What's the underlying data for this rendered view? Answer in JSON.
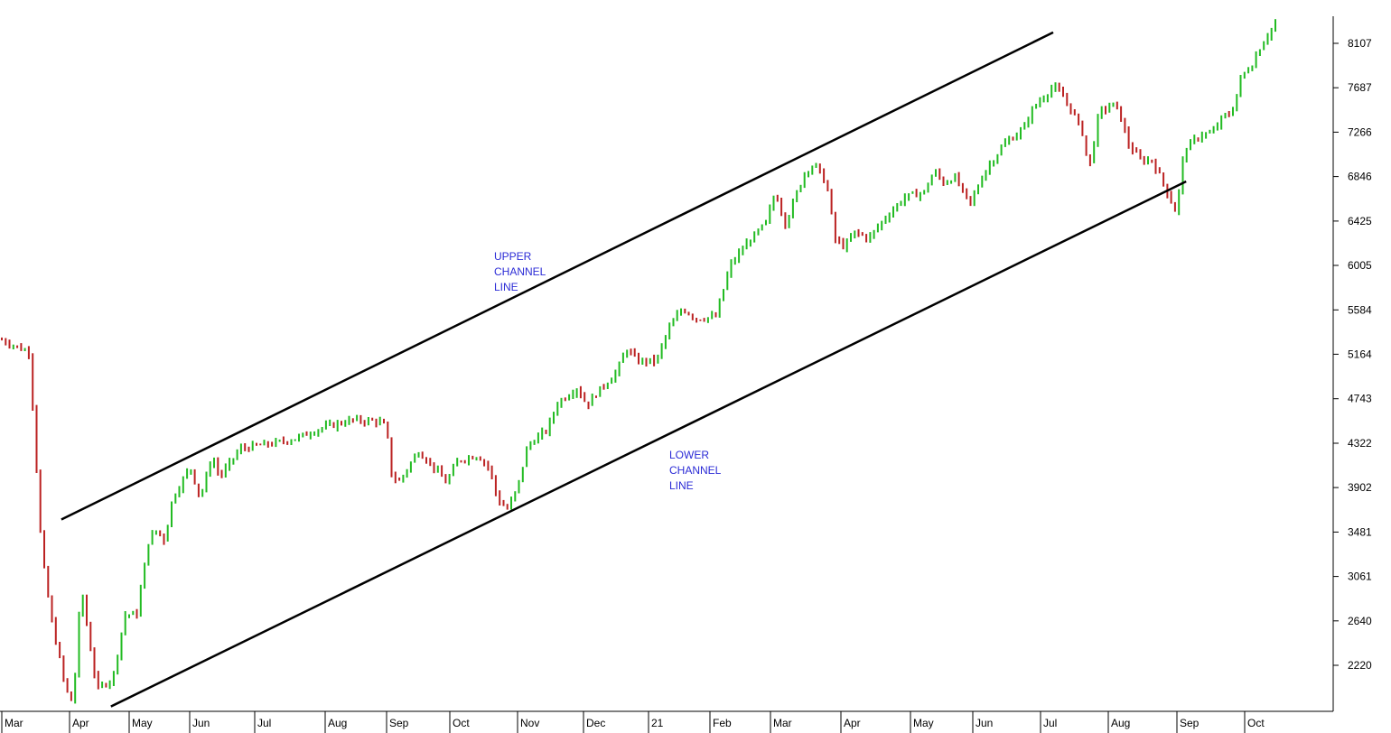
{
  "chart_data": {
    "type": "ohlc",
    "title": "",
    "xlabel": "",
    "ylabel": "",
    "ylim": [
      1780,
      8360
    ],
    "y_ticks": [
      2220,
      2640,
      3061,
      3481,
      3902,
      4322,
      4743,
      5164,
      5584,
      6005,
      6425,
      6846,
      7266,
      7687,
      8107
    ],
    "x_ticks": [
      "Mar",
      "Apr",
      "May",
      "Jun",
      "Jul",
      "Aug",
      "Sep",
      "Oct",
      "Nov",
      "Dec",
      "21",
      "Feb",
      "Mar",
      "Apr",
      "May",
      "Jun",
      "Jul",
      "Aug",
      "Sep",
      "Oct"
    ],
    "up_color": "#22bb22",
    "down_color": "#bb2222",
    "grid": false,
    "price_path": [
      [
        0,
        5300
      ],
      [
        1.4,
        5180
      ],
      [
        2.0,
        3300
      ],
      [
        2.5,
        2650
      ],
      [
        3.0,
        2200
      ],
      [
        3.2,
        2000
      ],
      [
        3.6,
        1850
      ],
      [
        4.0,
        3000
      ],
      [
        4.2,
        2700
      ],
      [
        4.8,
        1990
      ],
      [
        5.6,
        2100
      ],
      [
        6.2,
        2700
      ],
      [
        6.8,
        2700
      ],
      [
        7.4,
        3400
      ],
      [
        7.8,
        3500
      ],
      [
        8.2,
        3400
      ],
      [
        8.6,
        3800
      ],
      [
        9.5,
        4100
      ],
      [
        10.0,
        3800
      ],
      [
        10.6,
        4200
      ],
      [
        11.0,
        4000
      ],
      [
        12.0,
        4270
      ],
      [
        14.0,
        4330
      ],
      [
        15.0,
        4380
      ],
      [
        16.0,
        4460
      ],
      [
        17.6,
        4540
      ],
      [
        19.0,
        4530
      ],
      [
        19.4,
        4470
      ],
      [
        19.6,
        4040
      ],
      [
        20.0,
        3950
      ],
      [
        21.0,
        4250
      ],
      [
        21.8,
        4090
      ],
      [
        22.4,
        3950
      ],
      [
        23.0,
        4160
      ],
      [
        24.0,
        4210
      ],
      [
        24.6,
        4080
      ],
      [
        25.0,
        3780
      ],
      [
        25.5,
        3700
      ],
      [
        26.0,
        3900
      ],
      [
        26.5,
        4300
      ],
      [
        27.5,
        4450
      ],
      [
        28.0,
        4700
      ],
      [
        29.0,
        4850
      ],
      [
        29.5,
        4680
      ],
      [
        30.0,
        4800
      ],
      [
        31.0,
        5000
      ],
      [
        31.5,
        5220
      ],
      [
        32.0,
        5100
      ],
      [
        33.0,
        5100
      ],
      [
        33.6,
        5400
      ],
      [
        34.3,
        5600
      ],
      [
        35.0,
        5500
      ],
      [
        36.0,
        5520
      ],
      [
        36.7,
        6000
      ],
      [
        37.5,
        6200
      ],
      [
        38.5,
        6400
      ],
      [
        39.0,
        6700
      ],
      [
        39.5,
        6400
      ],
      [
        40.5,
        6900
      ],
      [
        41.0,
        6960
      ],
      [
        41.6,
        6760
      ],
      [
        42.0,
        6250
      ],
      [
        42.5,
        6180
      ],
      [
        43.0,
        6320
      ],
      [
        43.7,
        6260
      ],
      [
        44.5,
        6450
      ],
      [
        45.5,
        6650
      ],
      [
        46.5,
        6700
      ],
      [
        47.0,
        6900
      ],
      [
        47.5,
        6780
      ],
      [
        48.0,
        6850
      ],
      [
        48.8,
        6580
      ],
      [
        49.5,
        6880
      ],
      [
        50.5,
        7150
      ],
      [
        51.5,
        7300
      ],
      [
        52.0,
        7500
      ],
      [
        53.0,
        7700
      ],
      [
        53.5,
        7600
      ],
      [
        54.0,
        7450
      ],
      [
        54.5,
        7250
      ],
      [
        54.8,
        6900
      ],
      [
        55.3,
        7450
      ],
      [
        56.0,
        7530
      ],
      [
        56.3,
        7470
      ],
      [
        56.8,
        7150
      ],
      [
        57.4,
        7000
      ],
      [
        58.0,
        7000
      ],
      [
        58.7,
        6720
      ],
      [
        59.2,
        6500
      ],
      [
        59.6,
        7100
      ],
      [
        60.5,
        7250
      ],
      [
        61.0,
        7250
      ],
      [
        61.5,
        7400
      ],
      [
        62.0,
        7450
      ],
      [
        62.5,
        7800
      ],
      [
        63.0,
        7900
      ],
      [
        63.5,
        8100
      ],
      [
        64.2,
        8300
      ]
    ],
    "upper_channel_line": {
      "x": [
        3.0,
        53.0
      ],
      "y": [
        3600,
        8210
      ]
    },
    "lower_channel_line": {
      "x": [
        5.5,
        59.7
      ],
      "y": [
        1830,
        6800
      ]
    },
    "annotations": [
      {
        "lines": [
          "UPPER",
          "CHANNEL",
          "LINE"
        ],
        "target": "upper_channel_line"
      },
      {
        "lines": [
          "LOWER",
          "CHANNEL",
          "LINE"
        ],
        "target": "lower_channel_line"
      }
    ]
  }
}
